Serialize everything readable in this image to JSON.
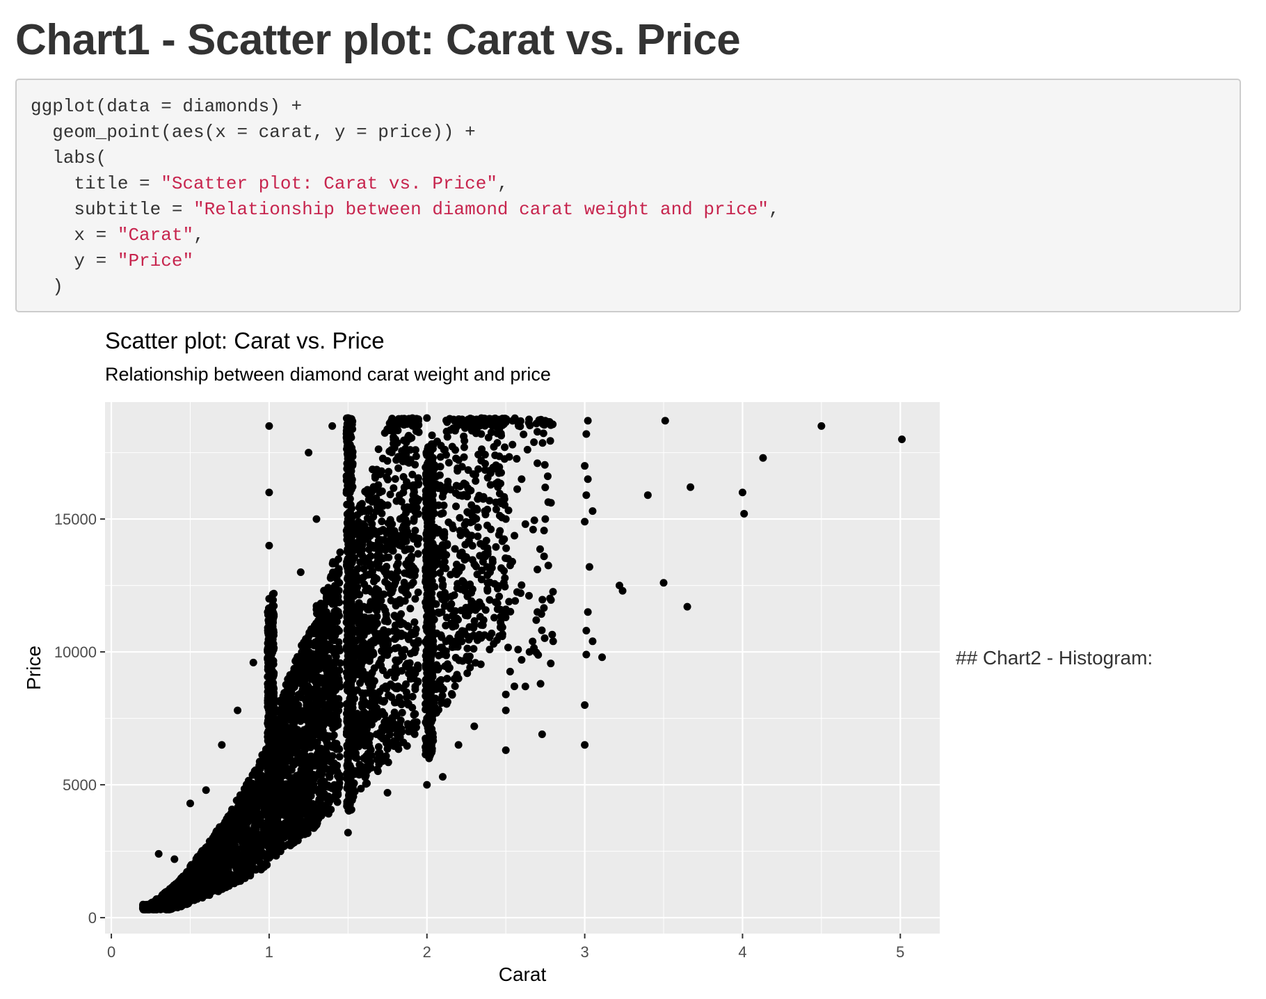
{
  "page_title": "Chart1 - Scatter plot: Carat vs. Price",
  "code": {
    "lines": [
      {
        "indent": "",
        "parts": [
          {
            "text": "ggplot(data = diamonds) +",
            "string": false
          }
        ]
      },
      {
        "indent": "  ",
        "parts": [
          {
            "text": "geom_point(aes(x = carat, y = price)) +",
            "string": false
          }
        ]
      },
      {
        "indent": "  ",
        "parts": [
          {
            "text": "labs(",
            "string": false
          }
        ]
      },
      {
        "indent": "    ",
        "parts": [
          {
            "text": "title = ",
            "string": false
          },
          {
            "text": "\"Scatter plot: Carat vs. Price\"",
            "string": true
          },
          {
            "text": ",",
            "string": false
          }
        ]
      },
      {
        "indent": "    ",
        "parts": [
          {
            "text": "subtitle = ",
            "string": false
          },
          {
            "text": "\"Relationship between diamond carat weight and price\"",
            "string": true
          },
          {
            "text": ",",
            "string": false
          }
        ]
      },
      {
        "indent": "    ",
        "parts": [
          {
            "text": "x = ",
            "string": false
          },
          {
            "text": "\"Carat\"",
            "string": true
          },
          {
            "text": ",",
            "string": false
          }
        ]
      },
      {
        "indent": "    ",
        "parts": [
          {
            "text": "y = ",
            "string": false
          },
          {
            "text": "\"Price\"",
            "string": true
          }
        ]
      },
      {
        "indent": "  ",
        "parts": [
          {
            "text": ")",
            "string": false
          }
        ]
      }
    ]
  },
  "side_text": "## Chart2 - Histogram:",
  "colors": {
    "panel_bg": "#ebebeb",
    "grid": "#ffffff",
    "point": "#000000",
    "code_string": "#c7254e"
  },
  "chart_data": {
    "type": "scatter",
    "title": "Scatter plot: Carat vs. Price",
    "subtitle": "Relationship between diamond carat weight and price",
    "xlabel": "Carat",
    "ylabel": "Price",
    "xlim": [
      -0.04,
      5.25
    ],
    "ylim": [
      -600,
      19400
    ],
    "xticks": [
      0,
      1,
      2,
      3,
      4,
      5
    ],
    "yticks": [
      0,
      5000,
      10000,
      15000
    ],
    "grid": true,
    "legend": "none",
    "series": [
      {
        "points": [
          [
            0.2,
            350
          ],
          [
            0.25,
            400
          ],
          [
            0.3,
            450
          ],
          [
            0.32,
            600
          ],
          [
            0.35,
            800
          ],
          [
            0.4,
            900
          ],
          [
            0.45,
            1100
          ],
          [
            0.5,
            1500
          ],
          [
            0.55,
            1800
          ],
          [
            0.6,
            2000
          ],
          [
            0.65,
            2300
          ],
          [
            0.7,
            2700
          ],
          [
            0.75,
            3000
          ],
          [
            0.8,
            3200
          ],
          [
            0.85,
            3500
          ],
          [
            0.9,
            3800
          ],
          [
            0.3,
            2400
          ],
          [
            0.4,
            2200
          ],
          [
            0.5,
            4300
          ],
          [
            0.6,
            4800
          ],
          [
            0.7,
            6500
          ],
          [
            0.8,
            7800
          ],
          [
            0.9,
            9600
          ],
          [
            0.65,
            1100
          ],
          [
            1.0,
            4000
          ],
          [
            1.0,
            6000
          ],
          [
            1.0,
            8000
          ],
          [
            1.0,
            10000
          ],
          [
            1.0,
            12000
          ],
          [
            1.0,
            14000
          ],
          [
            1.0,
            16000
          ],
          [
            1.0,
            18500
          ],
          [
            1.1,
            5500
          ],
          [
            1.2,
            7000
          ],
          [
            1.3,
            9000
          ],
          [
            1.4,
            11000
          ],
          [
            1.2,
            13000
          ],
          [
            1.3,
            15000
          ],
          [
            1.25,
            17500
          ],
          [
            1.4,
            18500
          ],
          [
            1.5,
            3200
          ],
          [
            1.5,
            5000
          ],
          [
            1.5,
            7500
          ],
          [
            1.5,
            10000
          ],
          [
            1.5,
            12500
          ],
          [
            1.5,
            15000
          ],
          [
            1.5,
            17500
          ],
          [
            1.5,
            18800
          ],
          [
            1.6,
            6000
          ],
          [
            1.7,
            8500
          ],
          [
            1.8,
            11000
          ],
          [
            1.9,
            13500
          ],
          [
            1.7,
            16000
          ],
          [
            1.8,
            18000
          ],
          [
            1.75,
            4700
          ],
          [
            2.0,
            5000
          ],
          [
            2.0,
            7500
          ],
          [
            2.0,
            10000
          ],
          [
            2.0,
            12500
          ],
          [
            2.0,
            15000
          ],
          [
            2.0,
            17500
          ],
          [
            2.0,
            18800
          ],
          [
            2.1,
            5300
          ],
          [
            2.2,
            6500
          ],
          [
            2.3,
            7200
          ],
          [
            2.2,
            9000
          ],
          [
            2.3,
            11000
          ],
          [
            2.4,
            13000
          ],
          [
            2.5,
            15000
          ],
          [
            2.6,
            16500
          ],
          [
            2.5,
            6300
          ],
          [
            2.5,
            7800
          ],
          [
            2.5,
            8400
          ],
          [
            2.6,
            9700
          ],
          [
            2.7,
            11500
          ],
          [
            2.7,
            13100
          ],
          [
            2.75,
            15000
          ],
          [
            2.7,
            17100
          ],
          [
            2.65,
            10000
          ],
          [
            2.72,
            8800
          ],
          [
            2.73,
            6900
          ],
          [
            2.8,
            10400
          ],
          [
            2.75,
            18700
          ],
          [
            3.0,
            6500
          ],
          [
            3.0,
            8000
          ],
          [
            3.01,
            9900
          ],
          [
            3.01,
            10800
          ],
          [
            3.02,
            11500
          ],
          [
            3.03,
            13200
          ],
          [
            3.0,
            14900
          ],
          [
            3.01,
            15900
          ],
          [
            3.02,
            16500
          ],
          [
            3.0,
            17000
          ],
          [
            3.01,
            18200
          ],
          [
            3.02,
            18700
          ],
          [
            3.05,
            10400
          ],
          [
            3.05,
            15300
          ],
          [
            3.11,
            9800
          ],
          [
            3.22,
            12500
          ],
          [
            3.24,
            12300
          ],
          [
            3.4,
            15900
          ],
          [
            3.5,
            12600
          ],
          [
            3.51,
            18700
          ],
          [
            3.65,
            11700
          ],
          [
            3.67,
            16200
          ],
          [
            4.0,
            16000
          ],
          [
            4.01,
            15200
          ],
          [
            4.13,
            17300
          ],
          [
            4.5,
            18500
          ],
          [
            5.01,
            18000
          ]
        ]
      }
    ]
  }
}
